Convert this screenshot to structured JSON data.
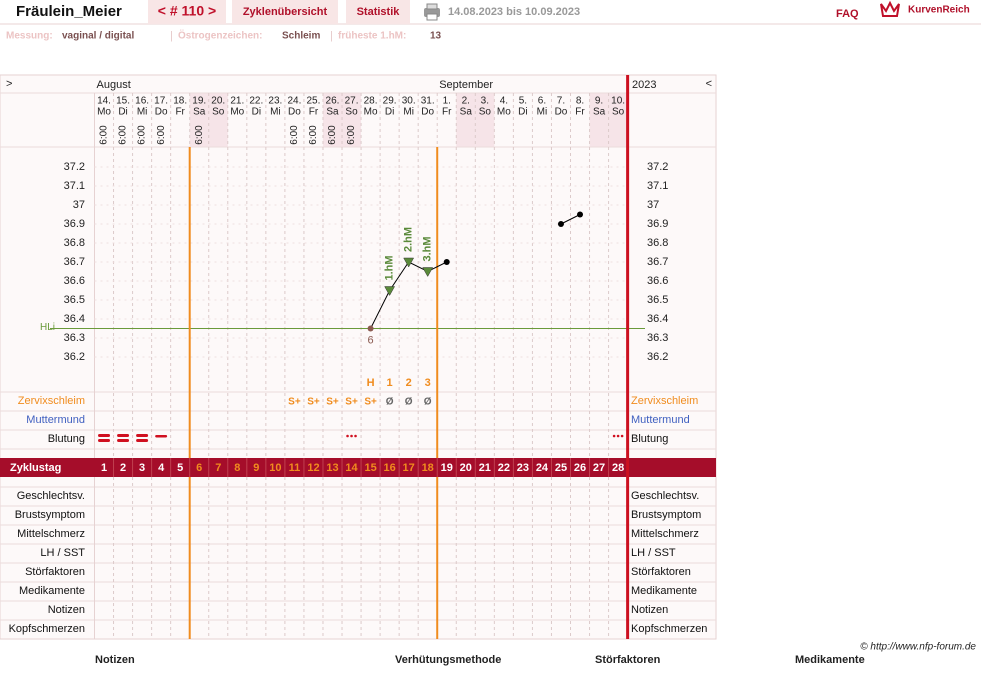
{
  "header": {
    "user": "Fräulein_Meier",
    "cycle_nav": "< # 110 >",
    "tabs": [
      "Zyklenübersicht",
      "Statistik"
    ],
    "date_range": "14.08.2023 bis 10.09.2023",
    "faq": "FAQ",
    "logo": "KurvenReich"
  },
  "info": {
    "items": [
      {
        "label": "Messung:",
        "value": "vaginal / digital"
      },
      {
        "label": "Östrogenzeichen:",
        "value": "Schleim"
      },
      {
        "label": "früheste 1.hM:",
        "value": 13
      }
    ],
    "separator": "|"
  },
  "chart_data": {
    "type": "line",
    "nav_left": ">",
    "nav_right": "<",
    "months": [
      "August",
      "September"
    ],
    "year": 2023,
    "dates": [
      "14.",
      "15.",
      "16.",
      "17.",
      "18.",
      "19.",
      "20.",
      "21.",
      "22.",
      "23.",
      "24.",
      "25.",
      "26.",
      "27.",
      "28.",
      "29.",
      "30.",
      "31.",
      "1.",
      "2.",
      "3.",
      "4.",
      "5.",
      "6.",
      "7.",
      "8.",
      "9.",
      "10."
    ],
    "weekdays": [
      "Mo",
      "Di",
      "Mi",
      "Do",
      "Fr",
      "Sa",
      "So",
      "Mo",
      "Di",
      "Mi",
      "Do",
      "Fr",
      "Sa",
      "So",
      "Mo",
      "Di",
      "Mi",
      "Do",
      "Fr",
      "Sa",
      "So",
      "Mo",
      "Di",
      "Mi",
      "Do",
      "Fr",
      "Sa",
      "So"
    ],
    "weekend_columns": [
      5,
      6,
      12,
      13,
      19,
      20,
      26,
      27
    ],
    "times": [
      "6:00",
      "6:00",
      "6:00",
      "6:00",
      null,
      "6:00",
      null,
      null,
      null,
      null,
      "6:00",
      "6:00",
      "6:00",
      "6:00",
      null,
      null,
      null,
      null,
      null,
      null,
      null,
      null,
      null,
      null,
      null,
      null,
      null,
      null
    ],
    "temperature": [
      null,
      null,
      null,
      null,
      null,
      null,
      null,
      null,
      null,
      null,
      null,
      null,
      null,
      null,
      36.35,
      36.55,
      36.7,
      36.65,
      36.7,
      null,
      null,
      null,
      null,
      null,
      36.9,
      36.95,
      null,
      null
    ],
    "ylim": [
      36.1,
      37.3
    ],
    "yticks": [
      36.2,
      36.3,
      36.4,
      36.5,
      36.6,
      36.7,
      36.8,
      36.9,
      37,
      37.1,
      37.2
    ],
    "cover_line": {
      "label": "HLi",
      "value": 36.35,
      "color": "#6a9a3a"
    },
    "point_labels": [
      null,
      null,
      null,
      null,
      null,
      null,
      null,
      null,
      null,
      null,
      null,
      null,
      null,
      null,
      "6",
      null,
      null,
      null,
      null,
      null,
      null,
      null,
      null,
      null,
      null,
      null,
      null,
      null
    ],
    "hm_labels": [
      null,
      null,
      null,
      null,
      null,
      null,
      null,
      null,
      null,
      null,
      null,
      null,
      null,
      null,
      null,
      "1.hM",
      "2.hM",
      "3.hM",
      null,
      null,
      null,
      null,
      null,
      null,
      null,
      null,
      null,
      null
    ],
    "peak_row": [
      null,
      null,
      null,
      null,
      null,
      null,
      null,
      null,
      null,
      null,
      null,
      null,
      null,
      null,
      "H",
      "1",
      "2",
      "3",
      null,
      null,
      null,
      null,
      null,
      null,
      null,
      null,
      null,
      null
    ],
    "cervix": {
      "label": "Zervixschleim",
      "values": [
        null,
        null,
        null,
        null,
        null,
        null,
        null,
        null,
        null,
        null,
        "S+",
        "S+",
        "S+",
        "S+",
        "S+",
        "Ø",
        "Ø",
        "Ø",
        null,
        null,
        null,
        null,
        null,
        null,
        null,
        null,
        null,
        null
      ]
    },
    "cervix_position": {
      "label": "Muttermund"
    },
    "bleeding": {
      "label": "Blutung",
      "values": [
        "heavy",
        "heavy",
        "heavy",
        "medium",
        null,
        null,
        null,
        null,
        null,
        null,
        null,
        null,
        null,
        "spotting",
        null,
        null,
        null,
        null,
        null,
        null,
        null,
        null,
        null,
        null,
        null,
        null,
        null,
        "spotting"
      ]
    },
    "cycle_label": "Zyklustag",
    "cycle_days": [
      1,
      2,
      3,
      4,
      5,
      6,
      7,
      8,
      9,
      10,
      11,
      12,
      13,
      14,
      15,
      16,
      17,
      18,
      19,
      20,
      21,
      22,
      23,
      24,
      25,
      26,
      27,
      28
    ],
    "fertile_window": [
      6,
      18
    ],
    "extra_rows": [
      "Geschlechtsv.",
      "Brustsymptom",
      "Mittelschmerz",
      "LH / SST",
      "Störfaktoren",
      "Medikamente",
      "Notizen",
      "Kopfschmerzen"
    ],
    "colors": {
      "line": "#000000",
      "hm": "#5a8a3a",
      "phase": "#f08c1e",
      "band": "#a50d2a",
      "bleeding": "#d01020",
      "end": "#cc1020"
    }
  },
  "footer": {
    "copyright": "© http://www.nfp-forum.de",
    "sections": [
      "Notizen",
      "Verhütungsmethode",
      "Störfaktoren",
      "Medikamente"
    ]
  }
}
